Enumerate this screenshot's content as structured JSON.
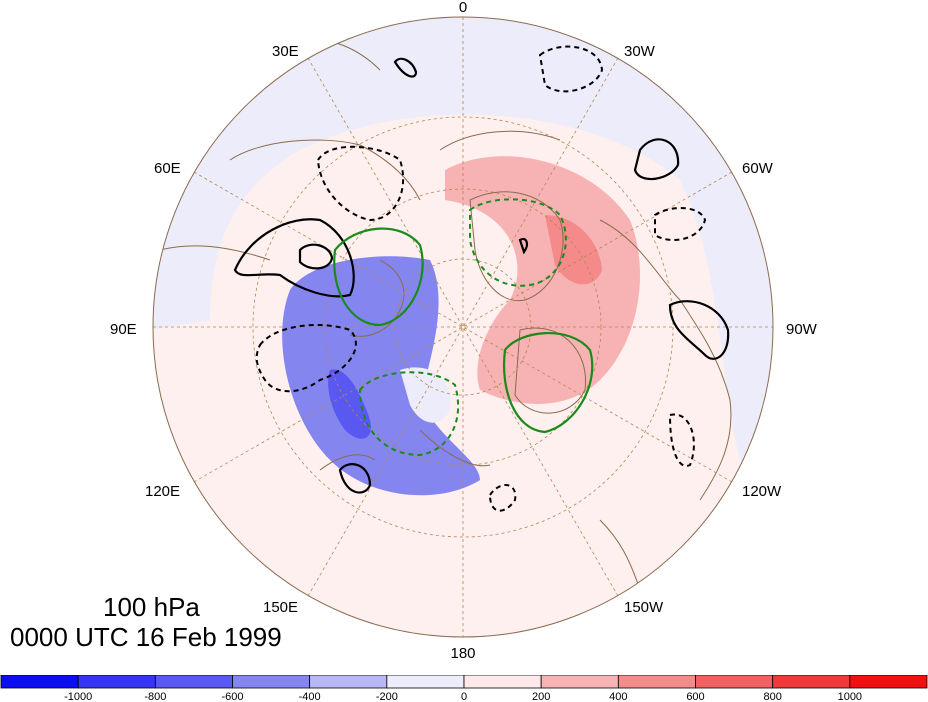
{
  "map": {
    "projection": "north-polar-stereographic",
    "longitude_labels": [
      "0",
      "30W",
      "60W",
      "90W",
      "120W",
      "150W",
      "180",
      "150E",
      "120E",
      "90E",
      "60E",
      "30E"
    ],
    "level_label": "100 hPa",
    "time_label": "0000 UTC 16 Feb 1999",
    "fill_anomaly_centers": [
      {
        "sign": "positive",
        "region": "North Atlantic / Greenland / Canada"
      },
      {
        "sign": "negative",
        "region": "Siberia / East Asia"
      }
    ]
  },
  "colorbar": {
    "tick_labels": [
      "-1000",
      "-800",
      "-600",
      "-400",
      "-200",
      "0",
      "200",
      "400",
      "600",
      "800",
      "1000"
    ],
    "colors": [
      "#0d0df2",
      "#3535f2",
      "#5959f2",
      "#8585f0",
      "#b8b8f5",
      "#ececfa",
      "#fde9e9",
      "#f7b3b3",
      "#f48a8a",
      "#f06262",
      "#ee3a3a",
      "#f01010"
    ]
  },
  "colors": {
    "coastline": "#8b6b4f",
    "grid": "#b08855",
    "contour_black": "#000000",
    "contour_green": "#1a8a1a"
  }
}
